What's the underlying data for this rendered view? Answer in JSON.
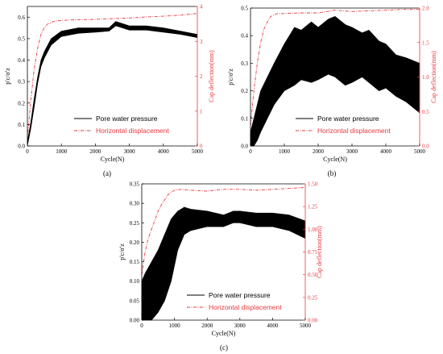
{
  "colors": {
    "pore": "#000000",
    "disp": "#e8383d",
    "axis": "#000000"
  },
  "chart_data": [
    {
      "type": "line",
      "panel_label": "(a)",
      "xlabel": "Cycle(N)",
      "ylabel_left": "p'c/σ'z",
      "ylabel_right": "Cap deflection(mm)",
      "xlim": [
        0,
        5000
      ],
      "ylim_left": [
        0,
        0.65
      ],
      "ylim_right": [
        0,
        4
      ],
      "xticks": [
        "0",
        "1000",
        "2000",
        "3000",
        "4000",
        "5000"
      ],
      "yticks_left": [
        "0.0",
        "0.1",
        "0.2",
        "0.3",
        "0.4",
        "0.5",
        "0.6"
      ],
      "yticks_right": [
        "0",
        "1",
        "2",
        "3",
        "4"
      ],
      "legend": [
        "Pore water pressure",
        "Horizontal displacement"
      ],
      "series": [
        {
          "name": "Pore water pressure",
          "axis": "left",
          "style": "band",
          "x": [
            0,
            100,
            200,
            300,
            400,
            500,
            700,
            1000,
            1500,
            2000,
            2400,
            2600,
            3000,
            3500,
            4000,
            4500,
            5000
          ],
          "low": [
            0,
            0.08,
            0.18,
            0.29,
            0.37,
            0.41,
            0.47,
            0.51,
            0.525,
            0.53,
            0.535,
            0.56,
            0.54,
            0.54,
            0.53,
            0.52,
            0.505
          ],
          "high": [
            0.02,
            0.11,
            0.22,
            0.32,
            0.4,
            0.44,
            0.5,
            0.535,
            0.55,
            0.55,
            0.55,
            0.58,
            0.56,
            0.56,
            0.55,
            0.535,
            0.52
          ]
        },
        {
          "name": "Horizontal displacement",
          "axis": "right",
          "style": "dashdot",
          "x": [
            0,
            100,
            200,
            300,
            400,
            500,
            600,
            800,
            1000,
            1500,
            2000,
            2500,
            3000,
            3500,
            4000,
            4500,
            5000
          ],
          "y": [
            0.2,
            1.3,
            2.2,
            2.8,
            3.2,
            3.4,
            3.5,
            3.58,
            3.6,
            3.62,
            3.63,
            3.65,
            3.67,
            3.7,
            3.72,
            3.75,
            3.8
          ]
        }
      ]
    },
    {
      "type": "line",
      "panel_label": "(b)",
      "xlabel": "Cycle(N)",
      "ylabel_left": "p'c/σ'z",
      "ylabel_right": "Cap deflection(mm)",
      "xlim": [
        0,
        5000
      ],
      "ylim_left": [
        0,
        0.5
      ],
      "ylim_right": [
        0,
        2.0
      ],
      "xticks": [
        "0",
        "1000",
        "2000",
        "3000",
        "4000",
        "5000"
      ],
      "yticks_left": [
        "0.0",
        "0.1",
        "0.2",
        "0.3",
        "0.4",
        "0.5"
      ],
      "yticks_right": [
        "0.0",
        "0.5",
        "1.0",
        "1.5",
        "2.0"
      ],
      "legend": [
        "Pore water pressure",
        "Horizontal displacement"
      ],
      "series": [
        {
          "name": "Pore water pressure",
          "axis": "left",
          "style": "band",
          "x": [
            0,
            100,
            200,
            300,
            500,
            700,
            1000,
            1300,
            1500,
            1800,
            2000,
            2300,
            2500,
            2800,
            3000,
            3300,
            3500,
            3800,
            4000,
            4300,
            4600,
            5000
          ],
          "low": [
            0,
            0.0,
            0.02,
            0.05,
            0.1,
            0.15,
            0.2,
            0.22,
            0.24,
            0.23,
            0.24,
            0.26,
            0.25,
            0.22,
            0.23,
            0.25,
            0.23,
            0.2,
            0.21,
            0.18,
            0.16,
            0.12
          ],
          "high": [
            0.05,
            0.1,
            0.15,
            0.2,
            0.25,
            0.3,
            0.37,
            0.43,
            0.42,
            0.45,
            0.43,
            0.46,
            0.47,
            0.44,
            0.43,
            0.41,
            0.42,
            0.38,
            0.37,
            0.33,
            0.32,
            0.3
          ]
        },
        {
          "name": "Horizontal displacement",
          "axis": "right",
          "style": "dashdot",
          "x": [
            0,
            100,
            200,
            300,
            400,
            500,
            600,
            800,
            1000,
            1500,
            2000,
            2500,
            3000,
            3500,
            4000,
            4500,
            5000
          ],
          "y": [
            0.3,
            0.8,
            1.2,
            1.5,
            1.7,
            1.8,
            1.88,
            1.92,
            1.92,
            1.93,
            1.93,
            1.97,
            1.95,
            1.96,
            1.97,
            1.98,
            1.98
          ]
        }
      ]
    },
    {
      "type": "line",
      "panel_label": "(c)",
      "xlabel": "Cycle(N)",
      "ylabel_left": "p'c/σ'z",
      "ylabel_right": "Cap deflection(mm)",
      "xlim": [
        0,
        5000
      ],
      "ylim_left": [
        0,
        0.35
      ],
      "ylim_right": [
        0,
        1.5
      ],
      "xticks": [
        "0",
        "1000",
        "2000",
        "3000",
        "4000",
        "5000"
      ],
      "yticks_left": [
        "0.00",
        "0.05",
        "0.10",
        "0.15",
        "0.20",
        "0.25",
        "0.30",
        "0.35"
      ],
      "yticks_right": [
        "0.00",
        "0.25",
        "0.50",
        "0.75",
        "1.00",
        "1.25",
        "1.50"
      ],
      "legend": [
        "Pore water pressure",
        "Horizontal displacement"
      ],
      "series": [
        {
          "name": "Pore water pressure",
          "axis": "left",
          "style": "band",
          "x": [
            0,
            100,
            300,
            500,
            700,
            900,
            1100,
            1300,
            1500,
            2000,
            2500,
            2800,
            3000,
            3500,
            4000,
            4500,
            5000
          ],
          "low": [
            0,
            0.0,
            0.0,
            0.02,
            0.05,
            0.1,
            0.18,
            0.22,
            0.23,
            0.24,
            0.24,
            0.25,
            0.25,
            0.24,
            0.24,
            0.23,
            0.21
          ],
          "high": [
            0.1,
            0.12,
            0.15,
            0.18,
            0.22,
            0.26,
            0.28,
            0.29,
            0.285,
            0.28,
            0.27,
            0.28,
            0.28,
            0.275,
            0.275,
            0.27,
            0.255
          ]
        },
        {
          "name": "Horizontal displacement",
          "axis": "right",
          "style": "dashdot",
          "x": [
            0,
            100,
            200,
            300,
            400,
            500,
            600,
            800,
            1000,
            1200,
            1500,
            2000,
            2500,
            3000,
            3500,
            4000,
            4500,
            5000
          ],
          "y": [
            0.5,
            0.75,
            0.9,
            1.0,
            1.1,
            1.2,
            1.27,
            1.38,
            1.43,
            1.44,
            1.43,
            1.42,
            1.44,
            1.44,
            1.43,
            1.44,
            1.45,
            1.46
          ]
        }
      ]
    }
  ]
}
